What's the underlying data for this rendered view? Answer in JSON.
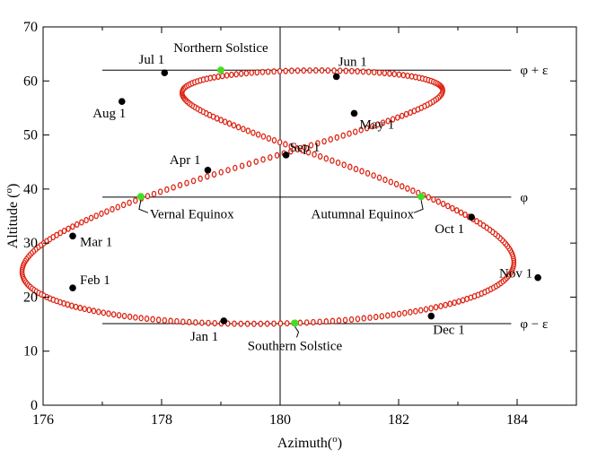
{
  "chart_data": {
    "type": "scatter",
    "xlabel": "Azimuth(o)",
    "ylabel": "Altitude (o)",
    "xlabel_main": "Azimuth(",
    "xlabel_sup": "o",
    "xlabel_end": ")",
    "ylabel_main": "Altitude (",
    "ylabel_sup": "o",
    "ylabel_end": ")",
    "xlim": [
      176,
      185
    ],
    "ylim": [
      0,
      70
    ],
    "xticks": [
      176,
      178,
      180,
      182,
      184
    ],
    "yticks": [
      0,
      10,
      20,
      30,
      40,
      50,
      60,
      70
    ],
    "grid": false,
    "colors": {
      "curve": "#dd2211",
      "month_point": "#000000",
      "solstice_equinox_point": "#44dd22",
      "axes": "#000000"
    },
    "analemma": {
      "center_azimuth": 180.0,
      "equator_altitude": 38.5,
      "half_amplitude": 23.44,
      "note": "curve sampled daily"
    },
    "reference_lines": [
      {
        "label": "φ + ε",
        "y": 62.0
      },
      {
        "label": "φ",
        "y": 38.5
      },
      {
        "label": "φ − ε",
        "y": 15.1
      }
    ],
    "vertical_line": {
      "x": 180.0
    },
    "month_points": [
      {
        "label": "Jan 1",
        "x": 179.05,
        "y": 15.6
      },
      {
        "label": "Feb 1",
        "x": 176.5,
        "y": 21.7
      },
      {
        "label": "Mar 1",
        "x": 176.5,
        "y": 31.3
      },
      {
        "label": "Apr 1",
        "x": 178.78,
        "y": 43.5
      },
      {
        "label": "May 1",
        "x": 181.25,
        "y": 54.0
      },
      {
        "label": "Jun 1",
        "x": 180.95,
        "y": 60.8
      },
      {
        "label": "Jul 1",
        "x": 178.05,
        "y": 61.5
      },
      {
        "label": "Aug 1",
        "x": 177.33,
        "y": 56.2
      },
      {
        "label": "Sep 1",
        "x": 180.1,
        "y": 46.3
      },
      {
        "label": "Oct 1",
        "x": 183.23,
        "y": 34.8
      },
      {
        "label": "Nov 1",
        "x": 184.35,
        "y": 23.6
      },
      {
        "label": "Dec 1",
        "x": 182.55,
        "y": 16.5
      }
    ],
    "special_points": [
      {
        "label": "Northern Solstice",
        "x": 179.0,
        "y": 62.0
      },
      {
        "label": "Vernal Equinox",
        "x": 177.65,
        "y": 38.6
      },
      {
        "label": "Autumnal Equinox",
        "x": 182.38,
        "y": 38.6
      },
      {
        "label": "Southern Solstice",
        "x": 180.25,
        "y": 15.2
      }
    ]
  }
}
